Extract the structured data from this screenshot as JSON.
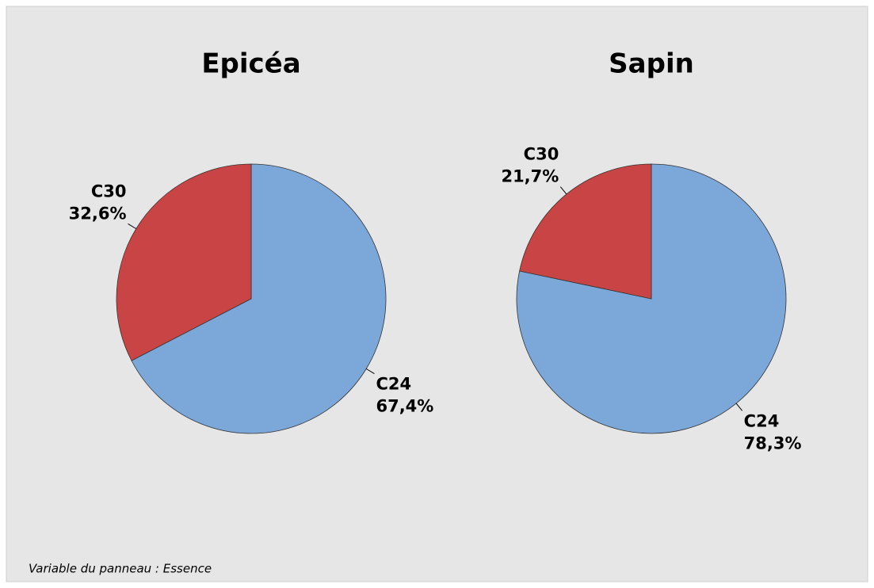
{
  "chart_data": [
    {
      "type": "pie",
      "title": "Epicéa",
      "categories": [
        "C24",
        "C30"
      ],
      "values": [
        67.4,
        32.6
      ],
      "value_labels": [
        "67,4%",
        "32,6%"
      ],
      "colors": [
        "#7ba7d9",
        "#c94545"
      ]
    },
    {
      "type": "pie",
      "title": "Sapin",
      "categories": [
        "C24",
        "C30"
      ],
      "values": [
        78.3,
        21.7
      ],
      "value_labels": [
        "78,3%",
        "21,7%"
      ],
      "colors": [
        "#7ba7d9",
        "#c94545"
      ]
    }
  ],
  "panel_note": "Variable du panneau : Essence"
}
